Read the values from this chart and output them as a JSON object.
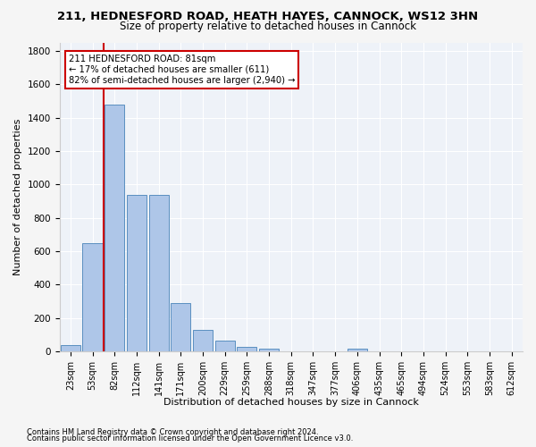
{
  "title_line1": "211, HEDNESFORD ROAD, HEATH HAYES, CANNOCK, WS12 3HN",
  "title_line2": "Size of property relative to detached houses in Cannock",
  "xlabel": "Distribution of detached houses by size in Cannock",
  "ylabel": "Number of detached properties",
  "footer_line1": "Contains HM Land Registry data © Crown copyright and database right 2024.",
  "footer_line2": "Contains public sector information licensed under the Open Government Licence v3.0.",
  "bar_labels": [
    "23sqm",
    "53sqm",
    "82sqm",
    "112sqm",
    "141sqm",
    "171sqm",
    "200sqm",
    "229sqm",
    "259sqm",
    "288sqm",
    "318sqm",
    "347sqm",
    "377sqm",
    "406sqm",
    "435sqm",
    "465sqm",
    "494sqm",
    "524sqm",
    "553sqm",
    "583sqm",
    "612sqm"
  ],
  "bar_values": [
    40,
    650,
    1480,
    935,
    935,
    290,
    130,
    65,
    25,
    15,
    0,
    0,
    0,
    15,
    0,
    0,
    0,
    0,
    0,
    0,
    0
  ],
  "bar_color": "#aec6e8",
  "bar_edge_color": "#5a8fc0",
  "annotation_line1": "211 HEDNESFORD ROAD: 81sqm",
  "annotation_line2": "← 17% of detached houses are smaller (611)",
  "annotation_line3": "82% of semi-detached houses are larger (2,940) →",
  "vline_color": "#cc0000",
  "annotation_box_color": "#cc0000",
  "ylim": [
    0,
    1850
  ],
  "yticks": [
    0,
    200,
    400,
    600,
    800,
    1000,
    1200,
    1400,
    1600,
    1800
  ],
  "background_color": "#eef2f8",
  "grid_color": "#ffffff",
  "fig_facecolor": "#f5f5f5"
}
